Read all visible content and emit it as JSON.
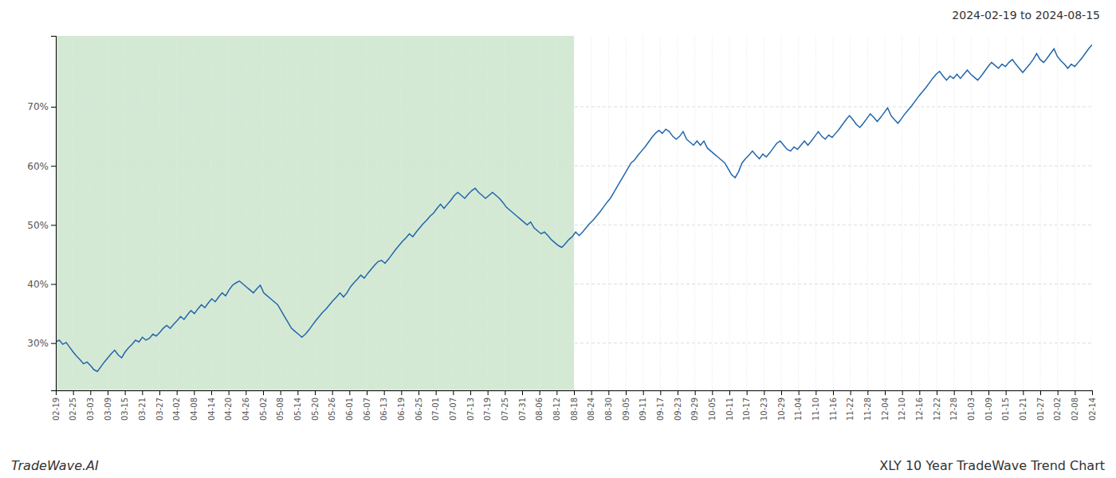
{
  "chart_data": {
    "type": "line",
    "title": "XLY 10 Year TradeWave Trend Chart",
    "subtitle": "2024-02-19 to 2024-08-15",
    "annotations": [
      {
        "text": "TradeWave.AI"
      }
    ],
    "color": "#2166ac",
    "grid": true,
    "shaded_region": {
      "x": [
        0,
        149.5
      ],
      "color": "#d4e9d4"
    },
    "xlim": [
      0,
      299
    ],
    "xticks": [
      {
        "value": 0,
        "label": "02-19"
      },
      {
        "value": 4.983333333333333,
        "label": "02-25"
      },
      {
        "value": 9.966666666666667,
        "label": "03-03"
      },
      {
        "value": 14.95,
        "label": "03-09"
      },
      {
        "value": 19.933333333333334,
        "label": "03-15"
      },
      {
        "value": 24.916666666666668,
        "label": "03-21"
      },
      {
        "value": 29.9,
        "label": "03-27"
      },
      {
        "value": 34.88333333333333,
        "label": "04-02"
      },
      {
        "value": 39.86666666666667,
        "label": "04-08"
      },
      {
        "value": 44.85,
        "label": "04-14"
      },
      {
        "value": 49.833333333333336,
        "label": "04-20"
      },
      {
        "value": 54.81666666666667,
        "label": "04-26"
      },
      {
        "value": 59.8,
        "label": "05-02"
      },
      {
        "value": 64.78333333333333,
        "label": "05-08"
      },
      {
        "value": 69.76666666666667,
        "label": "05-14"
      },
      {
        "value": 74.75,
        "label": "05-20"
      },
      {
        "value": 79.73333333333333,
        "label": "05-26"
      },
      {
        "value": 84.71666666666667,
        "label": "06-01"
      },
      {
        "value": 89.7,
        "label": "06-07"
      },
      {
        "value": 94.68333333333334,
        "label": "06-13"
      },
      {
        "value": 99.66666666666667,
        "label": "06-19"
      },
      {
        "value": 104.65,
        "label": "06-25"
      },
      {
        "value": 109.63333333333334,
        "label": "07-01"
      },
      {
        "value": 114.61666666666667,
        "label": "07-07"
      },
      {
        "value": 119.6,
        "label": "07-13"
      },
      {
        "value": 124.58333333333334,
        "label": "07-19"
      },
      {
        "value": 129.56666666666666,
        "label": "07-25"
      },
      {
        "value": 134.55,
        "label": "07-31"
      },
      {
        "value": 139.53333333333333,
        "label": "08-06"
      },
      {
        "value": 144.51666666666668,
        "label": "08-12"
      },
      {
        "value": 149.5,
        "label": "08-18"
      },
      {
        "value": 154.48333333333332,
        "label": "08-24"
      },
      {
        "value": 159.46666666666667,
        "label": "08-30"
      },
      {
        "value": 164.45,
        "label": "09-05"
      },
      {
        "value": 169.43333333333334,
        "label": "09-11"
      },
      {
        "value": 174.41666666666666,
        "label": "09-17"
      },
      {
        "value": 179.4,
        "label": "09-23"
      },
      {
        "value": 184.38333333333333,
        "label": "09-29"
      },
      {
        "value": 189.36666666666667,
        "label": "10-05"
      },
      {
        "value": 194.35,
        "label": "10-11"
      },
      {
        "value": 199.33333333333334,
        "label": "10-17"
      },
      {
        "value": 204.31666666666666,
        "label": "10-23"
      },
      {
        "value": 209.3,
        "label": "10-29"
      },
      {
        "value": 214.28333333333333,
        "label": "11-04"
      },
      {
        "value": 219.26666666666668,
        "label": "11-10"
      },
      {
        "value": 224.25,
        "label": "11-16"
      },
      {
        "value": 229.23333333333332,
        "label": "11-22"
      },
      {
        "value": 234.21666666666667,
        "label": "11-28"
      },
      {
        "value": 239.2,
        "label": "12-04"
      },
      {
        "value": 244.18333333333334,
        "label": "12-10"
      },
      {
        "value": 249.16666666666666,
        "label": "12-16"
      },
      {
        "value": 254.15,
        "label": "12-22"
      },
      {
        "value": 259.1333333333333,
        "label": "12-28"
      },
      {
        "value": 264.1166666666667,
        "label": "01-03"
      },
      {
        "value": 269.1,
        "label": "01-09"
      },
      {
        "value": 274.0833333333333,
        "label": "01-15"
      },
      {
        "value": 279.06666666666666,
        "label": "01-21"
      },
      {
        "value": 284.05,
        "label": "01-27"
      },
      {
        "value": 289.03333333333336,
        "label": "02-02"
      },
      {
        "value": 294.01666666666665,
        "label": "02-08"
      },
      {
        "value": 299,
        "label": "02-14"
      }
    ],
    "ylim": [
      22,
      82
    ],
    "yticks": [
      {
        "value": 30,
        "label": "30%"
      },
      {
        "value": 40,
        "label": "40%"
      },
      {
        "value": 50,
        "label": "50%"
      },
      {
        "value": 60,
        "label": "60%"
      },
      {
        "value": 70,
        "label": "70%"
      }
    ],
    "x": [
      0,
      1,
      2,
      3,
      4,
      5,
      6,
      7,
      8,
      9,
      10,
      11,
      12,
      13,
      14,
      15,
      16,
      17,
      18,
      19,
      20,
      21,
      22,
      23,
      24,
      25,
      26,
      27,
      28,
      29,
      30,
      31,
      32,
      33,
      34,
      35,
      36,
      37,
      38,
      39,
      40,
      41,
      42,
      43,
      44,
      45,
      46,
      47,
      48,
      49,
      50,
      51,
      52,
      53,
      54,
      55,
      56,
      57,
      58,
      59,
      60,
      61,
      62,
      63,
      64,
      65,
      66,
      67,
      68,
      69,
      70,
      71,
      72,
      73,
      74,
      75,
      76,
      77,
      78,
      79,
      80,
      81,
      82,
      83,
      84,
      85,
      86,
      87,
      88,
      89,
      90,
      91,
      92,
      93,
      94,
      95,
      96,
      97,
      98,
      99,
      100,
      101,
      102,
      103,
      104,
      105,
      106,
      107,
      108,
      109,
      110,
      111,
      112,
      113,
      114,
      115,
      116,
      117,
      118,
      119,
      120,
      121,
      122,
      123,
      124,
      125,
      126,
      127,
      128,
      129,
      130,
      131,
      132,
      133,
      134,
      135,
      136,
      137,
      138,
      139,
      140,
      141,
      142,
      143,
      144,
      145,
      146,
      147,
      148,
      149,
      150,
      151,
      152,
      153,
      154,
      155,
      156,
      157,
      158,
      159,
      160,
      161,
      162,
      163,
      164,
      165,
      166,
      167,
      168,
      169,
      170,
      171,
      172,
      173,
      174,
      175,
      176,
      177,
      178,
      179,
      180,
      181,
      182,
      183,
      184,
      185,
      186,
      187,
      188,
      189,
      190,
      191,
      192,
      193,
      194,
      195,
      196,
      197,
      198,
      199,
      200,
      201,
      202,
      203,
      204,
      205,
      206,
      207,
      208,
      209,
      210,
      211,
      212,
      213,
      214,
      215,
      216,
      217,
      218,
      219,
      220,
      221,
      222,
      223,
      224,
      225,
      226,
      227,
      228,
      229,
      230,
      231,
      232,
      233,
      234,
      235,
      236,
      237,
      238,
      239,
      240,
      241,
      242,
      243,
      244,
      245,
      246,
      247,
      248,
      249,
      250,
      251,
      252,
      253,
      254,
      255,
      256,
      257,
      258,
      259,
      260,
      261,
      262,
      263,
      264,
      265,
      266,
      267,
      268,
      269,
      270,
      271,
      272,
      273,
      274,
      275,
      276,
      277,
      278,
      279,
      280,
      281,
      282,
      283,
      284,
      285,
      286,
      287,
      288,
      289,
      290,
      291,
      292,
      293,
      294,
      295,
      296,
      297,
      298,
      299
    ],
    "values": [
      30.2,
      30.5,
      29.8,
      30.1,
      29.3,
      28.5,
      27.8,
      27.2,
      26.5,
      26.8,
      26.2,
      25.5,
      25.2,
      26.0,
      26.8,
      27.5,
      28.2,
      28.8,
      28.0,
      27.5,
      28.5,
      29.2,
      29.8,
      30.5,
      30.2,
      31.0,
      30.5,
      30.8,
      31.5,
      31.2,
      31.8,
      32.5,
      33.0,
      32.5,
      33.2,
      33.8,
      34.5,
      34.0,
      34.8,
      35.5,
      35.0,
      35.8,
      36.5,
      36.0,
      36.8,
      37.5,
      37.0,
      37.8,
      38.5,
      38.0,
      39.0,
      39.8,
      40.2,
      40.5,
      40.0,
      39.5,
      39.0,
      38.5,
      39.2,
      39.8,
      38.5,
      38.0,
      37.5,
      37.0,
      36.5,
      35.5,
      34.5,
      33.5,
      32.5,
      32.0,
      31.5,
      31.0,
      31.5,
      32.2,
      33.0,
      33.8,
      34.5,
      35.2,
      35.8,
      36.5,
      37.2,
      37.8,
      38.5,
      37.8,
      38.5,
      39.5,
      40.2,
      40.8,
      41.5,
      41.0,
      41.8,
      42.5,
      43.2,
      43.8,
      44.0,
      43.5,
      44.2,
      45.0,
      45.8,
      46.5,
      47.2,
      47.8,
      48.5,
      48.0,
      48.8,
      49.5,
      50.2,
      50.8,
      51.5,
      52.0,
      52.8,
      53.5,
      52.8,
      53.5,
      54.2,
      55.0,
      55.5,
      55.0,
      54.5,
      55.2,
      55.8,
      56.2,
      55.5,
      55.0,
      54.5,
      55.0,
      55.5,
      55.0,
      54.5,
      53.8,
      53.0,
      52.5,
      52.0,
      51.5,
      51.0,
      50.5,
      50.0,
      50.5,
      49.5,
      49.0,
      48.5,
      48.8,
      48.2,
      47.5,
      47.0,
      46.5,
      46.2,
      46.8,
      47.5,
      48.0,
      48.8,
      48.2,
      48.8,
      49.5,
      50.2,
      50.8,
      51.5,
      52.2,
      53.0,
      53.8,
      54.5,
      55.5,
      56.5,
      57.5,
      58.5,
      59.5,
      60.5,
      61.0,
      61.8,
      62.5,
      63.2,
      64.0,
      64.8,
      65.5,
      66.0,
      65.5,
      66.2,
      65.8,
      65.0,
      64.5,
      65.0,
      65.8,
      64.5,
      64.0,
      63.5,
      64.2,
      63.5,
      64.2,
      63.0,
      62.5,
      62.0,
      61.5,
      61.0,
      60.5,
      59.5,
      58.5,
      58.0,
      59.0,
      60.5,
      61.2,
      61.8,
      62.5,
      61.8,
      61.2,
      62.0,
      61.5,
      62.2,
      63.0,
      63.8,
      64.2,
      63.5,
      62.8,
      62.5,
      63.2,
      62.8,
      63.5,
      64.2,
      63.5,
      64.2,
      65.0,
      65.8,
      65.0,
      64.5,
      65.2,
      64.8,
      65.5,
      66.2,
      67.0,
      67.8,
      68.5,
      67.8,
      67.0,
      66.5,
      67.2,
      68.0,
      68.8,
      68.2,
      67.5,
      68.2,
      69.0,
      69.8,
      68.5,
      67.8,
      67.2,
      68.0,
      68.8,
      69.5,
      70.2,
      71.0,
      71.8,
      72.5,
      73.2,
      74.0,
      74.8,
      75.5,
      76.0,
      75.2,
      74.5,
      75.2,
      74.8,
      75.5,
      74.8,
      75.5,
      76.2,
      75.5,
      75.0,
      74.5,
      75.2,
      76.0,
      76.8,
      77.5,
      77.0,
      76.5,
      77.2,
      76.8,
      77.5,
      78.0,
      77.2,
      76.5,
      75.8,
      76.5,
      77.2,
      78.0,
      79.0,
      78.0,
      77.5,
      78.2,
      79.0,
      79.8,
      78.5,
      77.8,
      77.2,
      76.5,
      77.2,
      76.8,
      77.5,
      78.2,
      79.0,
      79.8,
      80.5
    ]
  }
}
